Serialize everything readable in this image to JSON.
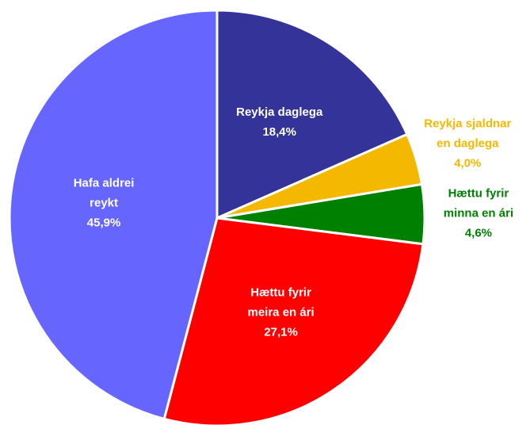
{
  "chart_data": {
    "type": "pie",
    "categories": [
      "Reykja daglega",
      "Reykja sjaldnar en daglega",
      "Hættu fyrir minna en ári",
      "Hættu fyrir meira en ári",
      "Hafa aldrei reykt"
    ],
    "values": [
      18.4,
      4.0,
      4.6,
      27.1,
      45.9
    ],
    "value_labels": [
      "18,4%",
      "4,0%",
      "4,6%",
      "27,1%",
      "45,9%"
    ],
    "colors": [
      "#333399",
      "#f5b800",
      "#008000",
      "#ff0000",
      "#6666ff"
    ]
  }
}
